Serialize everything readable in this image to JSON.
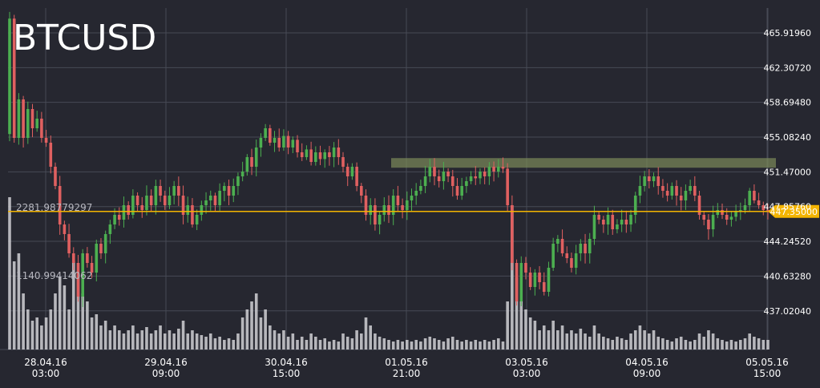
{
  "chart_data": {
    "type": "candlestick",
    "title": "BTCUSD",
    "colors": {
      "background": "#262730",
      "grid": "#474a55",
      "up": "#4caf50",
      "down": "#e06060",
      "volume": "#c8c8cc",
      "price_line": "#f4b400",
      "zone": "#7c8a5a",
      "text": "#ffffff"
    },
    "x_axis": {
      "tick_labels": [
        {
          "date": "28.04.16",
          "time": "03:00"
        },
        {
          "date": "29.04.16",
          "time": "09:00"
        },
        {
          "date": "30.04.16",
          "time": "15:00"
        },
        {
          "date": "01.05.16",
          "time": "21:00"
        },
        {
          "date": "03.05.16",
          "time": "03:00"
        },
        {
          "date": "04.05.16",
          "time": "09:00"
        },
        {
          "date": "05.05.16",
          "time": "15:00"
        }
      ]
    },
    "y_axis": {
      "ticks": [
        "465.91960",
        "462.30720",
        "458.69480",
        "455.08240",
        "451.47000",
        "447.85760",
        "444.24520",
        "440.63280",
        "437.02040"
      ],
      "ylim": [
        433.0,
        468.5
      ]
    },
    "volume_labels": [
      "2281.98779297",
      "1140.99414062"
    ],
    "current_price": "447.35000",
    "current_price_value": 447.35,
    "resistance_zone": {
      "low": 451.9,
      "high": 452.9
    },
    "path": [
      [
        467.4,
        0.95
      ],
      [
        455,
        0.55
      ],
      [
        459,
        0.6
      ],
      [
        455,
        0.35
      ],
      [
        458,
        0.25
      ],
      [
        456,
        0.18
      ],
      [
        457,
        0.2
      ],
      [
        455,
        0.15
      ],
      [
        454.5,
        0.2
      ],
      [
        452,
        0.25
      ],
      [
        450,
        0.35
      ],
      [
        446,
        0.45
      ],
      [
        445,
        0.4
      ],
      [
        443,
        0.25
      ],
      [
        442,
        0.55
      ],
      [
        438.5,
        0.45
      ],
      [
        443,
        0.35
      ],
      [
        442,
        0.3
      ],
      [
        441,
        0.2
      ],
      [
        444,
        0.22
      ],
      [
        443,
        0.15
      ],
      [
        445,
        0.18
      ],
      [
        446,
        0.12
      ],
      [
        447,
        0.15
      ],
      [
        446.5,
        0.12
      ],
      [
        448,
        0.1
      ],
      [
        447,
        0.12
      ],
      [
        449,
        0.15
      ],
      [
        448,
        0.1
      ],
      [
        447.5,
        0.12
      ],
      [
        449,
        0.14
      ],
      [
        448,
        0.1
      ],
      [
        450,
        0.12
      ],
      [
        449,
        0.15
      ],
      [
        448,
        0.1
      ],
      [
        449,
        0.12
      ],
      [
        450,
        0.1
      ],
      [
        449,
        0.13
      ],
      [
        447,
        0.18
      ],
      [
        448,
        0.1
      ],
      [
        446,
        0.12
      ],
      [
        447,
        0.1
      ],
      [
        448,
        0.09
      ],
      [
        448.5,
        0.08
      ],
      [
        449,
        0.1
      ],
      [
        448,
        0.07
      ],
      [
        449.5,
        0.08
      ],
      [
        450,
        0.06
      ],
      [
        449,
        0.07
      ],
      [
        450,
        0.06
      ],
      [
        451,
        0.1
      ],
      [
        451.5,
        0.2
      ],
      [
        453,
        0.25
      ],
      [
        452,
        0.3
      ],
      [
        454,
        0.35
      ],
      [
        455,
        0.2
      ],
      [
        456,
        0.25
      ],
      [
        454.5,
        0.15
      ],
      [
        455,
        0.12
      ],
      [
        454,
        0.1
      ],
      [
        455.2,
        0.12
      ],
      [
        454,
        0.08
      ],
      [
        454.8,
        0.1
      ],
      [
        453.5,
        0.06
      ],
      [
        453,
        0.08
      ],
      [
        453.8,
        0.06
      ],
      [
        452.5,
        0.1
      ],
      [
        453.5,
        0.08
      ],
      [
        452.8,
        0.06
      ],
      [
        453.5,
        0.07
      ],
      [
        453,
        0.05
      ],
      [
        454,
        0.06
      ],
      [
        453,
        0.05
      ],
      [
        452,
        0.1
      ],
      [
        451,
        0.08
      ],
      [
        452,
        0.07
      ],
      [
        450,
        0.12
      ],
      [
        449,
        0.1
      ],
      [
        447,
        0.2
      ],
      [
        448,
        0.15
      ],
      [
        446,
        0.1
      ],
      [
        447,
        0.08
      ],
      [
        448,
        0.07
      ],
      [
        447,
        0.06
      ],
      [
        449,
        0.05
      ],
      [
        448,
        0.06
      ],
      [
        447.5,
        0.05
      ],
      [
        448.5,
        0.06
      ],
      [
        449,
        0.05
      ],
      [
        449.5,
        0.06
      ],
      [
        450,
        0.05
      ],
      [
        451,
        0.07
      ],
      [
        452,
        0.08
      ],
      [
        451,
        0.07
      ],
      [
        450.5,
        0.06
      ],
      [
        451.5,
        0.05
      ],
      [
        451,
        0.07
      ],
      [
        450,
        0.08
      ],
      [
        449,
        0.06
      ],
      [
        450,
        0.05
      ],
      [
        450.5,
        0.06
      ],
      [
        451,
        0.05
      ],
      [
        450.8,
        0.06
      ],
      [
        451.5,
        0.05
      ],
      [
        451,
        0.06
      ],
      [
        452,
        0.05
      ],
      [
        451.5,
        0.06
      ],
      [
        452,
        0.07
      ],
      [
        451.8,
        0.05
      ],
      [
        448,
        0.3
      ],
      [
        442,
        0.9
      ],
      [
        438,
        0.45
      ],
      [
        442,
        0.3
      ],
      [
        441,
        0.25
      ],
      [
        439.5,
        0.2
      ],
      [
        441,
        0.18
      ],
      [
        440,
        0.12
      ],
      [
        439,
        0.15
      ],
      [
        441.5,
        0.12
      ],
      [
        444,
        0.18
      ],
      [
        444.5,
        0.12
      ],
      [
        443,
        0.15
      ],
      [
        442.5,
        0.1
      ],
      [
        441.5,
        0.12
      ],
      [
        443,
        0.1
      ],
      [
        444,
        0.13
      ],
      [
        443,
        0.1
      ],
      [
        444.5,
        0.08
      ],
      [
        447,
        0.15
      ],
      [
        446.5,
        0.1
      ],
      [
        446,
        0.08
      ],
      [
        447,
        0.07
      ],
      [
        445.5,
        0.06
      ],
      [
        446,
        0.08
      ],
      [
        446.5,
        0.07
      ],
      [
        446,
        0.06
      ],
      [
        447,
        0.1
      ],
      [
        449,
        0.12
      ],
      [
        450,
        0.15
      ],
      [
        451,
        0.12
      ],
      [
        450.5,
        0.1
      ],
      [
        451,
        0.12
      ],
      [
        450,
        0.08
      ],
      [
        449.5,
        0.07
      ],
      [
        449,
        0.06
      ],
      [
        450,
        0.05
      ],
      [
        449,
        0.07
      ],
      [
        448.5,
        0.08
      ],
      [
        449.5,
        0.06
      ],
      [
        450,
        0.05
      ],
      [
        449,
        0.06
      ],
      [
        447,
        0.1
      ],
      [
        446.5,
        0.08
      ],
      [
        445.5,
        0.12
      ],
      [
        447,
        0.1
      ],
      [
        447.5,
        0.07
      ],
      [
        447,
        0.06
      ],
      [
        446.5,
        0.05
      ],
      [
        446.8,
        0.06
      ],
      [
        447.3,
        0.05
      ],
      [
        447.5,
        0.06
      ],
      [
        448,
        0.07
      ],
      [
        449.5,
        0.1
      ],
      [
        448.5,
        0.08
      ],
      [
        448,
        0.07
      ],
      [
        447.5,
        0.06
      ],
      [
        447.35,
        0.06
      ]
    ]
  }
}
